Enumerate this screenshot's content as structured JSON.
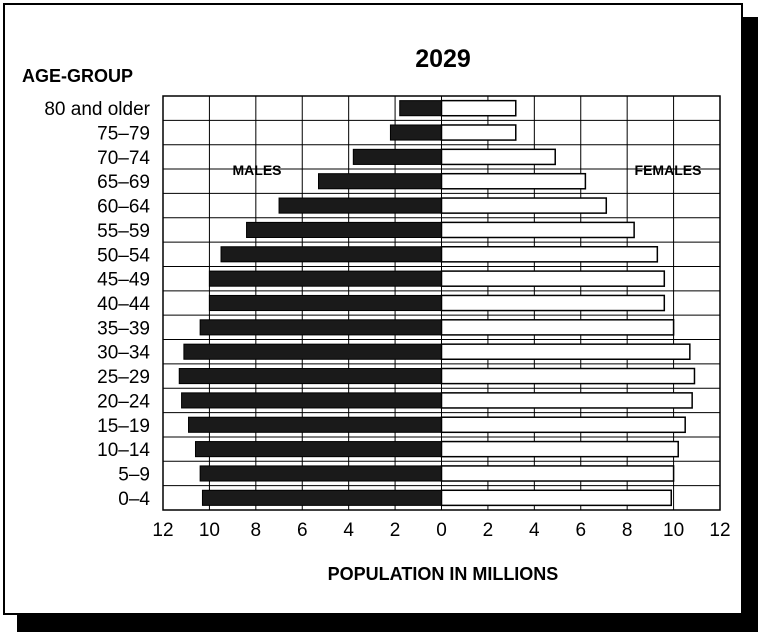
{
  "chart_data": {
    "type": "bar",
    "title": "2029",
    "ylabel": "AGE-GROUP",
    "xlabel": "POPULATION IN MILLIONS",
    "xlim": [
      -12,
      12
    ],
    "xticks": [
      12,
      10,
      8,
      6,
      4,
      2,
      0,
      2,
      4,
      6,
      8,
      10,
      12
    ],
    "xtick_values": [
      -12,
      -10,
      -8,
      -6,
      -4,
      -2,
      0,
      2,
      4,
      6,
      8,
      10,
      12
    ],
    "grid": true,
    "categories": [
      "80 and older",
      "75–79",
      "70–74",
      "65–69",
      "60–64",
      "55–59",
      "50–54",
      "45–49",
      "40–44",
      "35–39",
      "30–34",
      "25–29",
      "20–24",
      "15–19",
      "10–14",
      "5–9",
      "0–4"
    ],
    "series": [
      {
        "name": "MALES",
        "color": "#1a1a1a",
        "values": [
          1.8,
          2.2,
          3.8,
          5.3,
          7.0,
          8.4,
          9.5,
          10.0,
          10.0,
          10.4,
          11.1,
          11.3,
          11.2,
          10.9,
          10.6,
          10.4,
          10.3
        ]
      },
      {
        "name": "FEMALES",
        "color": "#ffffff",
        "values": [
          3.2,
          3.2,
          4.9,
          6.2,
          7.1,
          8.3,
          9.3,
          9.6,
          9.6,
          10.0,
          10.7,
          10.9,
          10.8,
          10.5,
          10.2,
          10.0,
          9.9
        ]
      }
    ]
  }
}
